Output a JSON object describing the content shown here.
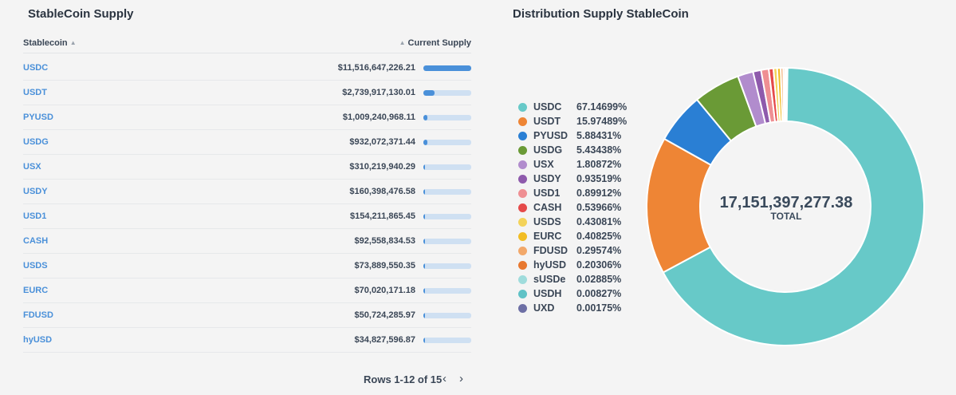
{
  "left_panel": {
    "title": "StableCoin Supply",
    "col_stablecoin": "Stablecoin",
    "col_supply": "Current Supply",
    "rows": [
      {
        "name": "USDC",
        "supply": "$11,516,647,226.21",
        "value": 11516647226.21
      },
      {
        "name": "USDT",
        "supply": "$2,739,917,130.01",
        "value": 2739917130.01
      },
      {
        "name": "PYUSD",
        "supply": "$1,009,240,968.11",
        "value": 1009240968.11
      },
      {
        "name": "USDG",
        "supply": "$932,072,371.44",
        "value": 932072371.44
      },
      {
        "name": "USX",
        "supply": "$310,219,940.29",
        "value": 310219940.29
      },
      {
        "name": "USDY",
        "supply": "$160,398,476.58",
        "value": 160398476.58
      },
      {
        "name": "USD1",
        "supply": "$154,211,865.45",
        "value": 154211865.45
      },
      {
        "name": "CASH",
        "supply": "$92,558,834.53",
        "value": 92558834.53
      },
      {
        "name": "USDS",
        "supply": "$73,889,550.35",
        "value": 73889550.35
      },
      {
        "name": "EURC",
        "supply": "$70,020,171.18",
        "value": 70020171.18
      },
      {
        "name": "FDUSD",
        "supply": "$50,724,285.97",
        "value": 50724285.97
      },
      {
        "name": "hyUSD",
        "supply": "$34,827,596.87",
        "value": 34827596.87
      }
    ],
    "pagination": {
      "label": "Rows 1-12 of 15",
      "prev": "‹",
      "next": "›"
    }
  },
  "chart_data": {
    "type": "pie",
    "title": "Distribution Supply StableCoin",
    "center_value": "17,151,397,277.38",
    "center_label": "TOTAL",
    "legend_position": "left",
    "slices": [
      {
        "label": "USDC",
        "pct": "67.14699%",
        "value": 67.14699,
        "color": "#67c9c8"
      },
      {
        "label": "USDT",
        "pct": "15.97489%",
        "value": 15.97489,
        "color": "#ee8535"
      },
      {
        "label": "PYUSD",
        "pct": "5.88431%",
        "value": 5.88431,
        "color": "#2a7fd4"
      },
      {
        "label": "USDG",
        "pct": "5.43438%",
        "value": 5.43438,
        "color": "#6a9a36"
      },
      {
        "label": "USX",
        "pct": "1.80872%",
        "value": 1.80872,
        "color": "#b18ccd"
      },
      {
        "label": "USDY",
        "pct": "0.93519%",
        "value": 0.93519,
        "color": "#8e5aac"
      },
      {
        "label": "USD1",
        "pct": "0.89912%",
        "value": 0.89912,
        "color": "#ef8f93"
      },
      {
        "label": "CASH",
        "pct": "0.53966%",
        "value": 0.53966,
        "color": "#e54a4a"
      },
      {
        "label": "USDS",
        "pct": "0.43081%",
        "value": 0.43081,
        "color": "#f3d35a"
      },
      {
        "label": "EURC",
        "pct": "0.40825%",
        "value": 0.40825,
        "color": "#f2bd24"
      },
      {
        "label": "FDUSD",
        "pct": "0.29574%",
        "value": 0.29574,
        "color": "#f2a86a"
      },
      {
        "label": "hyUSD",
        "pct": "0.20306%",
        "value": 0.20306,
        "color": "#e8782f"
      },
      {
        "label": "sUSDe",
        "pct": "0.02885%",
        "value": 0.02885,
        "color": "#9fdcdc"
      },
      {
        "label": "USDH",
        "pct": "0.00827%",
        "value": 0.00827,
        "color": "#5fc2c6"
      },
      {
        "label": "UXD",
        "pct": "0.00175%",
        "value": 0.00175,
        "color": "#6d6fa5"
      }
    ]
  },
  "colors": {
    "link": "#4a90d9",
    "bar_track": "#cfe0f2",
    "bar_fill": "#4a90d9"
  }
}
